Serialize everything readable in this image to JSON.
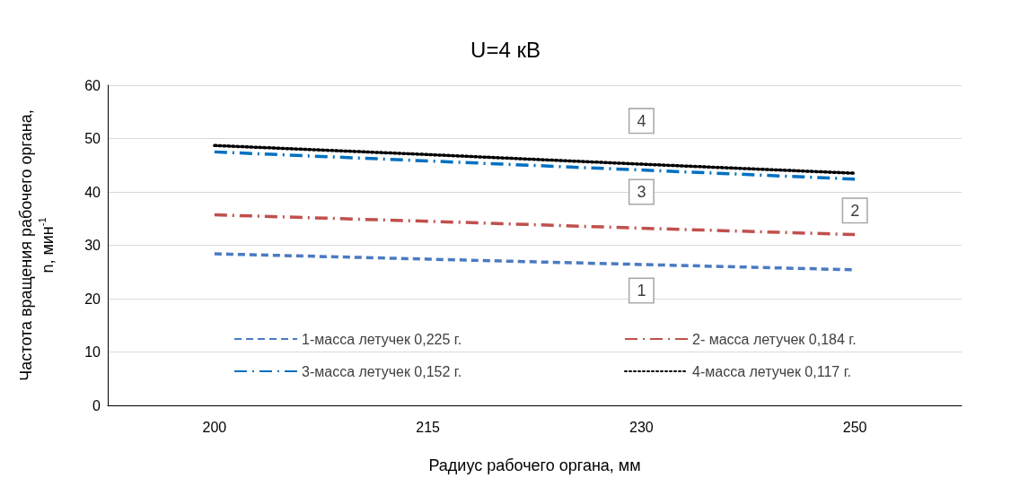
{
  "chart_data": {
    "type": "line",
    "title": "U=4 кВ",
    "xlabel": "Радиус рабочего органа, мм",
    "ylabel": "Частота вращения рабочего органа,\nn, мин$^{-1}$",
    "categories": [
      "200",
      "215",
      "230",
      "250"
    ],
    "series": [
      {
        "name": "1-масса летучек 0,225 г.",
        "color": "#4a7ac2",
        "line_style": "dashed",
        "values": [
          28.4,
          27.4,
          26.4,
          25.4
        ]
      },
      {
        "name": "2- масса летучек 0,184 г.",
        "color": "#c0504d",
        "line_style": "dashdot",
        "values": [
          35.7,
          34.5,
          33.2,
          32.0
        ]
      },
      {
        "name": "3-масса летучек 0,152 г.",
        "color": "#0070c0",
        "line_style": "dashdot",
        "values": [
          47.5,
          45.8,
          44.1,
          42.4
        ]
      },
      {
        "name": "4-масса летучек 0,117 г.",
        "color": "#000000",
        "line_style": "dotted",
        "values": [
          48.7,
          47.0,
          45.2,
          43.5
        ]
      }
    ],
    "ylim": [
      0,
      60
    ],
    "yticks": [
      0,
      10,
      20,
      30,
      40,
      50,
      60
    ],
    "grid": "y",
    "legend": "bottom",
    "marker": "none",
    "annotations": [
      {
        "text": "1",
        "x": "230",
        "y": 21.5
      },
      {
        "text": "2",
        "x": "250",
        "y": 36.5
      },
      {
        "text": "3",
        "x": "230",
        "y": 40
      },
      {
        "text": "4",
        "x": "230",
        "y": 53.3
      }
    ]
  }
}
